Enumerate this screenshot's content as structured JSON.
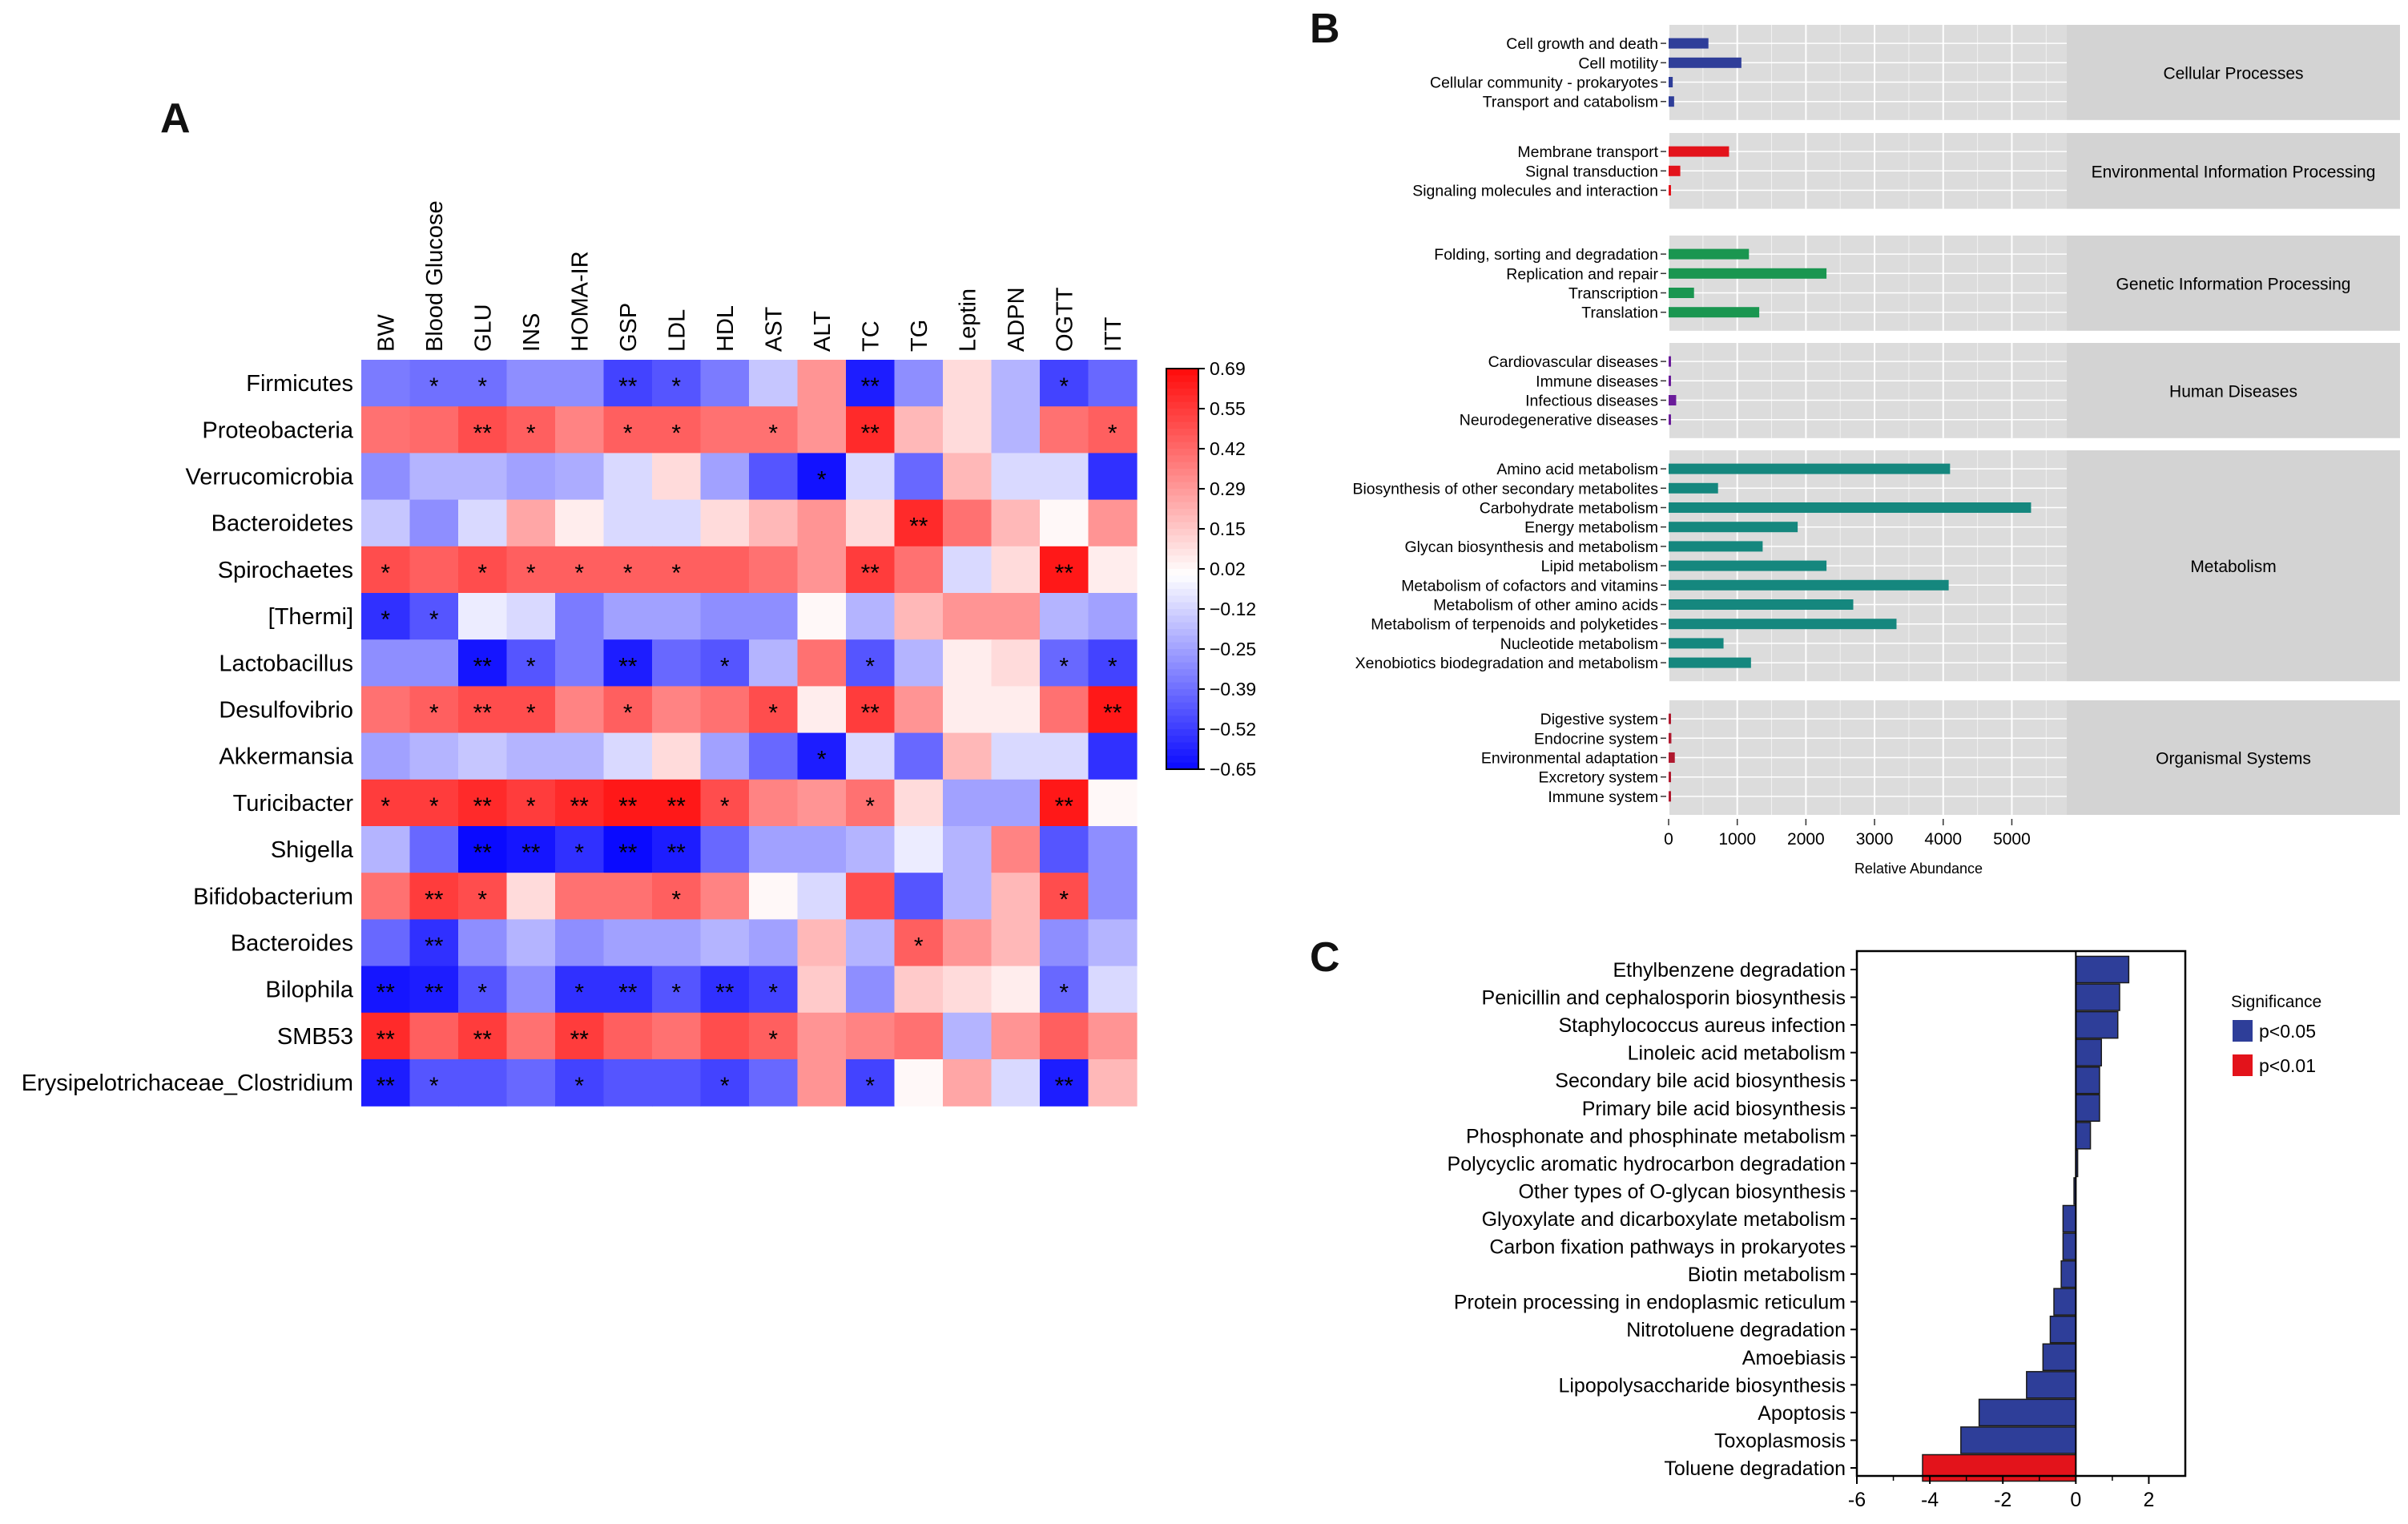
{
  "panels": {
    "a": "A",
    "b": "B",
    "c": "C"
  },
  "chart_data": [
    {
      "type": "heatmap",
      "panel": "A",
      "title": "",
      "columns": [
        "BW",
        "Blood Glucose",
        "GLU",
        "INS",
        "HOMA-IR",
        "GSP",
        "LDL",
        "HDL",
        "AST",
        "ALT",
        "TC",
        "TG",
        "Leptin",
        "ADPN",
        "OGTT",
        "ITT"
      ],
      "rows": [
        "Firmicutes",
        "Proteobacteria",
        "Verrucomicrobia",
        "Bacteroidetes",
        "Spirochaetes",
        "[Thermi]",
        "Lactobacillus",
        "Desulfovibrio",
        "Akkermansia",
        "Turicibacter",
        "Shigella",
        "Bifidobacterium",
        "Bacteroides",
        "Bilophila",
        "SMB53",
        "Erysipelotrichaceae_Clostridium"
      ],
      "values": [
        [
          -0.35,
          -0.38,
          -0.38,
          -0.3,
          -0.3,
          -0.5,
          -0.45,
          -0.35,
          -0.15,
          0.3,
          -0.6,
          -0.3,
          0.1,
          -0.2,
          -0.5,
          -0.4
        ],
        [
          0.4,
          0.42,
          0.5,
          0.45,
          0.35,
          0.45,
          0.45,
          0.4,
          0.4,
          0.3,
          0.6,
          0.2,
          0.1,
          -0.2,
          0.4,
          0.45
        ],
        [
          -0.3,
          -0.2,
          -0.2,
          -0.25,
          -0.22,
          -0.1,
          0.1,
          -0.25,
          -0.45,
          -0.63,
          -0.1,
          -0.4,
          0.2,
          -0.1,
          -0.1,
          -0.55
        ],
        [
          -0.15,
          -0.3,
          -0.1,
          0.25,
          0.05,
          -0.1,
          -0.1,
          0.1,
          0.2,
          0.3,
          0.1,
          0.6,
          0.4,
          0.2,
          0.02,
          0.3
        ],
        [
          0.5,
          0.45,
          0.5,
          0.45,
          0.45,
          0.45,
          0.45,
          0.45,
          0.4,
          0.3,
          0.55,
          0.4,
          -0.1,
          0.1,
          0.65,
          0.05
        ],
        [
          -0.55,
          -0.45,
          -0.05,
          -0.1,
          -0.35,
          -0.25,
          -0.25,
          -0.3,
          -0.3,
          0.02,
          -0.2,
          0.2,
          0.3,
          0.3,
          -0.2,
          -0.25
        ],
        [
          -0.3,
          -0.3,
          -0.62,
          -0.45,
          -0.35,
          -0.6,
          -0.4,
          -0.45,
          -0.2,
          0.4,
          -0.45,
          -0.2,
          0.05,
          0.1,
          -0.4,
          -0.5
        ],
        [
          0.4,
          0.45,
          0.5,
          0.5,
          0.35,
          0.45,
          0.35,
          0.4,
          0.5,
          0.05,
          0.55,
          0.3,
          0.05,
          0.05,
          0.4,
          0.65
        ],
        [
          -0.25,
          -0.2,
          -0.15,
          -0.2,
          -0.2,
          -0.1,
          0.1,
          -0.25,
          -0.4,
          -0.6,
          -0.1,
          -0.4,
          0.2,
          -0.1,
          -0.1,
          -0.55
        ],
        [
          0.55,
          0.55,
          0.6,
          0.55,
          0.6,
          0.65,
          0.65,
          0.5,
          0.35,
          0.3,
          0.4,
          0.1,
          -0.25,
          -0.25,
          0.65,
          0.02
        ],
        [
          -0.2,
          -0.4,
          -0.65,
          -0.62,
          -0.55,
          -0.65,
          -0.6,
          -0.4,
          -0.25,
          -0.25,
          -0.2,
          -0.05,
          -0.2,
          0.35,
          -0.45,
          -0.3
        ],
        [
          0.4,
          0.55,
          0.5,
          0.1,
          0.4,
          0.4,
          0.45,
          0.35,
          0.02,
          -0.1,
          0.5,
          -0.45,
          -0.2,
          0.2,
          0.5,
          -0.3
        ],
        [
          -0.4,
          -0.55,
          -0.3,
          -0.2,
          -0.3,
          -0.25,
          -0.25,
          -0.2,
          -0.25,
          0.2,
          -0.2,
          0.45,
          0.3,
          0.2,
          -0.3,
          -0.2
        ],
        [
          -0.62,
          -0.6,
          -0.45,
          -0.3,
          -0.55,
          -0.55,
          -0.45,
          -0.55,
          -0.5,
          0.15,
          -0.3,
          0.15,
          0.1,
          0.05,
          -0.4,
          -0.1
        ],
        [
          0.6,
          0.45,
          0.55,
          0.4,
          0.55,
          0.45,
          0.4,
          0.5,
          0.45,
          0.3,
          0.35,
          0.4,
          -0.2,
          0.3,
          0.45,
          0.3
        ],
        [
          -0.6,
          -0.45,
          -0.45,
          -0.4,
          -0.5,
          -0.45,
          -0.45,
          -0.5,
          -0.4,
          0.3,
          -0.5,
          0.02,
          0.25,
          -0.1,
          -0.6,
          0.2
        ]
      ],
      "stars": [
        [
          "",
          "*",
          "*",
          "",
          "",
          "**",
          "*",
          "",
          "",
          "",
          "**",
          "",
          "",
          "",
          "*",
          ""
        ],
        [
          "",
          "",
          "**",
          "*",
          "",
          "*",
          "*",
          "",
          "*",
          "",
          "**",
          "",
          "",
          "",
          "",
          "*"
        ],
        [
          "",
          "",
          "",
          "",
          "",
          "",
          "",
          "",
          "",
          "*",
          "",
          "",
          "",
          "",
          "",
          ""
        ],
        [
          "",
          "",
          "",
          "",
          "",
          "",
          "",
          "",
          "",
          "",
          "",
          "**",
          "",
          "",
          "",
          ""
        ],
        [
          "*",
          "",
          "*",
          "*",
          "*",
          "*",
          "*",
          "",
          "",
          "",
          "**",
          "",
          "",
          "",
          "**",
          ""
        ],
        [
          "*",
          "*",
          "",
          "",
          "",
          "",
          "",
          "",
          "",
          "",
          "",
          "",
          "",
          "",
          "",
          ""
        ],
        [
          "",
          "",
          "**",
          "*",
          "",
          "**",
          "",
          "*",
          "",
          "",
          "*",
          "",
          "",
          "",
          "*",
          "*"
        ],
        [
          "",
          "*",
          "**",
          "*",
          "",
          "*",
          "",
          "",
          "*",
          "",
          "**",
          "",
          "",
          "",
          "",
          "**"
        ],
        [
          "",
          "",
          "",
          "",
          "",
          "",
          "",
          "",
          "",
          "*",
          "",
          "",
          "",
          "",
          "",
          ""
        ],
        [
          "*",
          "*",
          "**",
          "*",
          "**",
          "**",
          "**",
          "*",
          "",
          "",
          "*",
          "",
          "",
          "",
          "**",
          ""
        ],
        [
          "",
          "",
          "**",
          "**",
          "*",
          "**",
          "**",
          "",
          "",
          "",
          "",
          "",
          "",
          "",
          "",
          ""
        ],
        [
          "",
          "**",
          "*",
          "",
          "",
          "",
          "*",
          "",
          "",
          "",
          "",
          "",
          "",
          "",
          "*",
          ""
        ],
        [
          "",
          "**",
          "",
          "",
          "",
          "",
          "",
          "",
          "",
          "",
          "",
          "*",
          "",
          "",
          "",
          ""
        ],
        [
          "**",
          "**",
          "*",
          "",
          "*",
          "**",
          "*",
          "**",
          "*",
          "",
          "",
          "",
          "",
          "",
          "*",
          ""
        ],
        [
          "**",
          "",
          "**",
          "",
          "**",
          "",
          "",
          "",
          "*",
          "",
          "",
          "",
          "",
          "",
          "",
          ""
        ],
        [
          "**",
          "*",
          "",
          "",
          "*",
          "",
          "",
          "*",
          "",
          "",
          "*",
          "",
          "",
          "",
          "**",
          ""
        ]
      ],
      "colorbar": {
        "min": -0.65,
        "max": 0.69,
        "ticks": [
          "0.69",
          "0.55",
          "0.42",
          "0.29",
          "0.15",
          "0.02",
          "−0.12",
          "−0.25",
          "−0.39",
          "−0.52",
          "−0.65"
        ]
      }
    },
    {
      "type": "bar",
      "panel": "B",
      "orientation": "horizontal",
      "xlabel": "Relative Abundance",
      "xlim": [
        0,
        5800
      ],
      "xticks": [
        "0",
        "1000",
        "2000",
        "3000",
        "4000",
        "5000"
      ],
      "groups": [
        {
          "name": "Cellular Processes",
          "color": "#2f3e99",
          "categories": [
            "Cell growth and death",
            "Cell motility",
            "Cellular community - prokaryotes",
            "Transport and catabolism"
          ],
          "values": [
            580,
            1060,
            60,
            80
          ]
        },
        {
          "name": "Environmental Information Processing",
          "color": "#e3131b",
          "categories": [
            "Membrane transport",
            "Signal transduction",
            "Signaling molecules and interaction"
          ],
          "values": [
            880,
            170,
            10
          ]
        },
        {
          "name": "Genetic Information Processing",
          "color": "#1a9650",
          "categories": [
            "Folding, sorting and degradation",
            "Replication and repair",
            "Transcription",
            "Translation"
          ],
          "values": [
            1170,
            2300,
            370,
            1320
          ]
        },
        {
          "name": "Human Diseases",
          "color": "#6a1b9a",
          "categories": [
            "Cardiovascular diseases",
            "Immune diseases",
            "Infectious diseases",
            "Neurodegenerative diseases"
          ],
          "values": [
            5,
            5,
            110,
            5
          ]
        },
        {
          "name": "Metabolism",
          "color": "#15877e",
          "categories": [
            "Amino acid metabolism",
            "Biosynthesis of other secondary metabolites",
            "Carbohydrate metabolism",
            "Energy metabolism",
            "Glycan biosynthesis and metabolism",
            "Lipid metabolism",
            "Metabolism of cofactors and vitamins",
            "Metabolism of other amino acids",
            "Metabolism of terpenoids and polyketides",
            "Nucleotide metabolism",
            "Xenobiotics biodegradation and metabolism"
          ],
          "values": [
            4100,
            720,
            5280,
            1880,
            1370,
            2300,
            4080,
            2690,
            3320,
            800,
            1200
          ]
        },
        {
          "name": "Organismal Systems",
          "color": "#b0182e",
          "categories": [
            "Digestive system",
            "Endocrine system",
            "Environmental adaptation",
            "Excretory system",
            "Immune system"
          ],
          "values": [
            10,
            40,
            90,
            5,
            20
          ]
        }
      ]
    },
    {
      "type": "bar",
      "panel": "C",
      "orientation": "horizontal",
      "xlim": [
        -6,
        3
      ],
      "xticks": [
        "-6",
        "-4",
        "-2",
        "0",
        "2"
      ],
      "legend_title": "Significance",
      "legend": [
        {
          "label": "p<0.05",
          "color": "#2e3e99"
        },
        {
          "label": "p<0.01",
          "color": "#e3131b"
        }
      ],
      "categories": [
        "Ethylbenzene degradation",
        "Penicillin and cephalosporin biosynthesis",
        "Staphylococcus aureus infection",
        "Linoleic acid metabolism",
        "Secondary bile acid biosynthesis",
        "Primary bile acid biosynthesis",
        "Phosphonate and phosphinate metabolism",
        "Polycyclic aromatic hydrocarbon degradation",
        "Other types of O-glycan biosynthesis",
        "Glyoxylate and dicarboxylate metabolism",
        "Carbon fixation pathways in prokaryotes",
        "Biotin metabolism",
        "Protein processing in endoplasmic reticulum",
        "Nitrotoluene degradation",
        "Amoebiasis",
        "Lipopolysaccharide biosynthesis",
        "Apoptosis",
        "Toxoplasmosis",
        "Toluene degradation"
      ],
      "values": [
        1.45,
        1.2,
        1.15,
        0.7,
        0.65,
        0.65,
        0.4,
        0.05,
        -0.05,
        -0.35,
        -0.35,
        -0.4,
        -0.6,
        -0.7,
        -0.9,
        -1.35,
        -2.65,
        -3.15,
        -4.2
      ],
      "significance": [
        "p<0.05",
        "p<0.05",
        "p<0.05",
        "p<0.05",
        "p<0.05",
        "p<0.05",
        "p<0.05",
        "p<0.05",
        "p<0.05",
        "p<0.05",
        "p<0.05",
        "p<0.05",
        "p<0.05",
        "p<0.05",
        "p<0.05",
        "p<0.05",
        "p<0.05",
        "p<0.05",
        "p<0.01"
      ]
    }
  ]
}
